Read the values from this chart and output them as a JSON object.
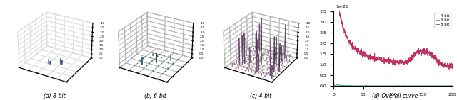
{
  "fig_width": 6.4,
  "fig_height": 1.41,
  "dpi": 100,
  "labels": [
    "(a) 8-bit",
    "(b) 6-bit",
    "(c) 4-bit",
    "(d) Overall curve"
  ],
  "zlim": [
    0,
    4.0
  ],
  "zticks": [
    0.0,
    0.5,
    1.0,
    1.5,
    2.0,
    2.5,
    3.0,
    3.5,
    4.0
  ],
  "colors": {
    "8bit": "#3a6ea5",
    "6bit": "#3a8a5a",
    "4bit_dark": "#7b5080",
    "4bit_light": "#d8a0b8",
    "curve_4bit": "#c03060",
    "curve_6bit": "#50c050",
    "curve_8bit": "#4080c0"
  },
  "overall_ylim": [
    0,
    3.5
  ],
  "overall_xlim": [
    0,
    200
  ],
  "overall_yticks": [
    0.0,
    0.5,
    1.0,
    1.5,
    2.0,
    2.5,
    3.0,
    3.5
  ],
  "overall_xticks": [
    0,
    50,
    100,
    150,
    200
  ],
  "scale_label": "1e-26"
}
